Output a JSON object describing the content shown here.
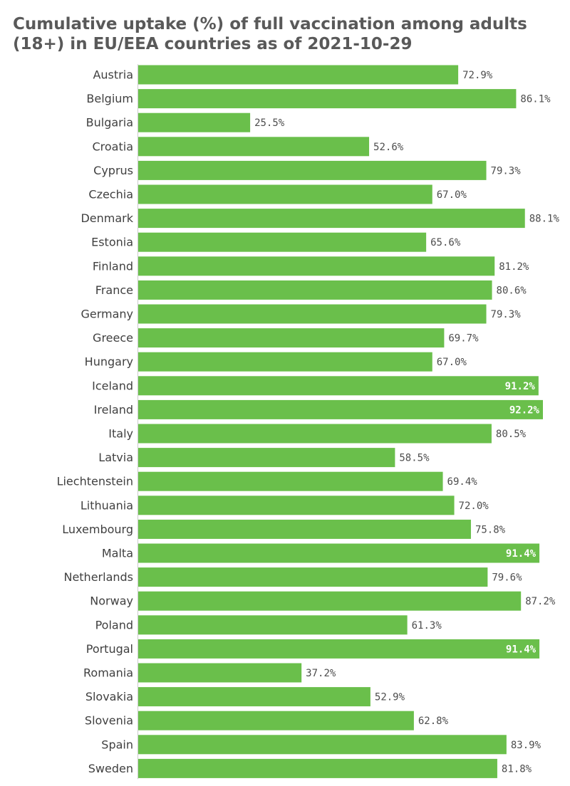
{
  "chart_data": {
    "type": "bar",
    "orientation": "horizontal",
    "title": "Cumulative uptake (%) of full vaccination among adults (18+) in EU/EEA countries as of 2021-10-29",
    "categories": [
      "Austria",
      "Belgium",
      "Bulgaria",
      "Croatia",
      "Cyprus",
      "Czechia",
      "Denmark",
      "Estonia",
      "Finland",
      "France",
      "Germany",
      "Greece",
      "Hungary",
      "Iceland",
      "Ireland",
      "Italy",
      "Latvia",
      "Liechtenstein",
      "Lithuania",
      "Luxembourg",
      "Malta",
      "Netherlands",
      "Norway",
      "Poland",
      "Portugal",
      "Romania",
      "Slovakia",
      "Slovenia",
      "Spain",
      "Sweden"
    ],
    "values": [
      72.9,
      86.1,
      25.5,
      52.6,
      79.3,
      67.0,
      88.1,
      65.6,
      81.2,
      80.6,
      79.3,
      69.7,
      67.0,
      91.2,
      92.2,
      80.5,
      58.5,
      69.4,
      72.0,
      75.8,
      91.4,
      79.6,
      87.2,
      61.3,
      91.4,
      37.2,
      52.9,
      62.8,
      83.9,
      81.8
    ],
    "value_labels": [
      "72.9%",
      "86.1%",
      "25.5%",
      "52.6%",
      "79.3%",
      "67.0%",
      "88.1%",
      "65.6%",
      "81.2%",
      "80.6%",
      "79.3%",
      "69.7%",
      "67.0%",
      "91.2%",
      "92.2%",
      "80.5%",
      "58.5%",
      "69.4%",
      "72.0%",
      "75.8%",
      "91.4%",
      "79.6%",
      "87.2%",
      "61.3%",
      "91.4%",
      "37.2%",
      "52.9%",
      "62.8%",
      "83.9%",
      "81.8%"
    ],
    "xlabel": "",
    "ylabel": "",
    "xlim": [
      0,
      92.2
    ],
    "grid": false,
    "legend": "none",
    "colors": {
      "bar": "#6abf4b",
      "label_outside": "#4d4d4d",
      "label_inside": "#ffffff",
      "category_text": "#404040",
      "title": "#595959",
      "axis_line": "#cccccc"
    }
  }
}
